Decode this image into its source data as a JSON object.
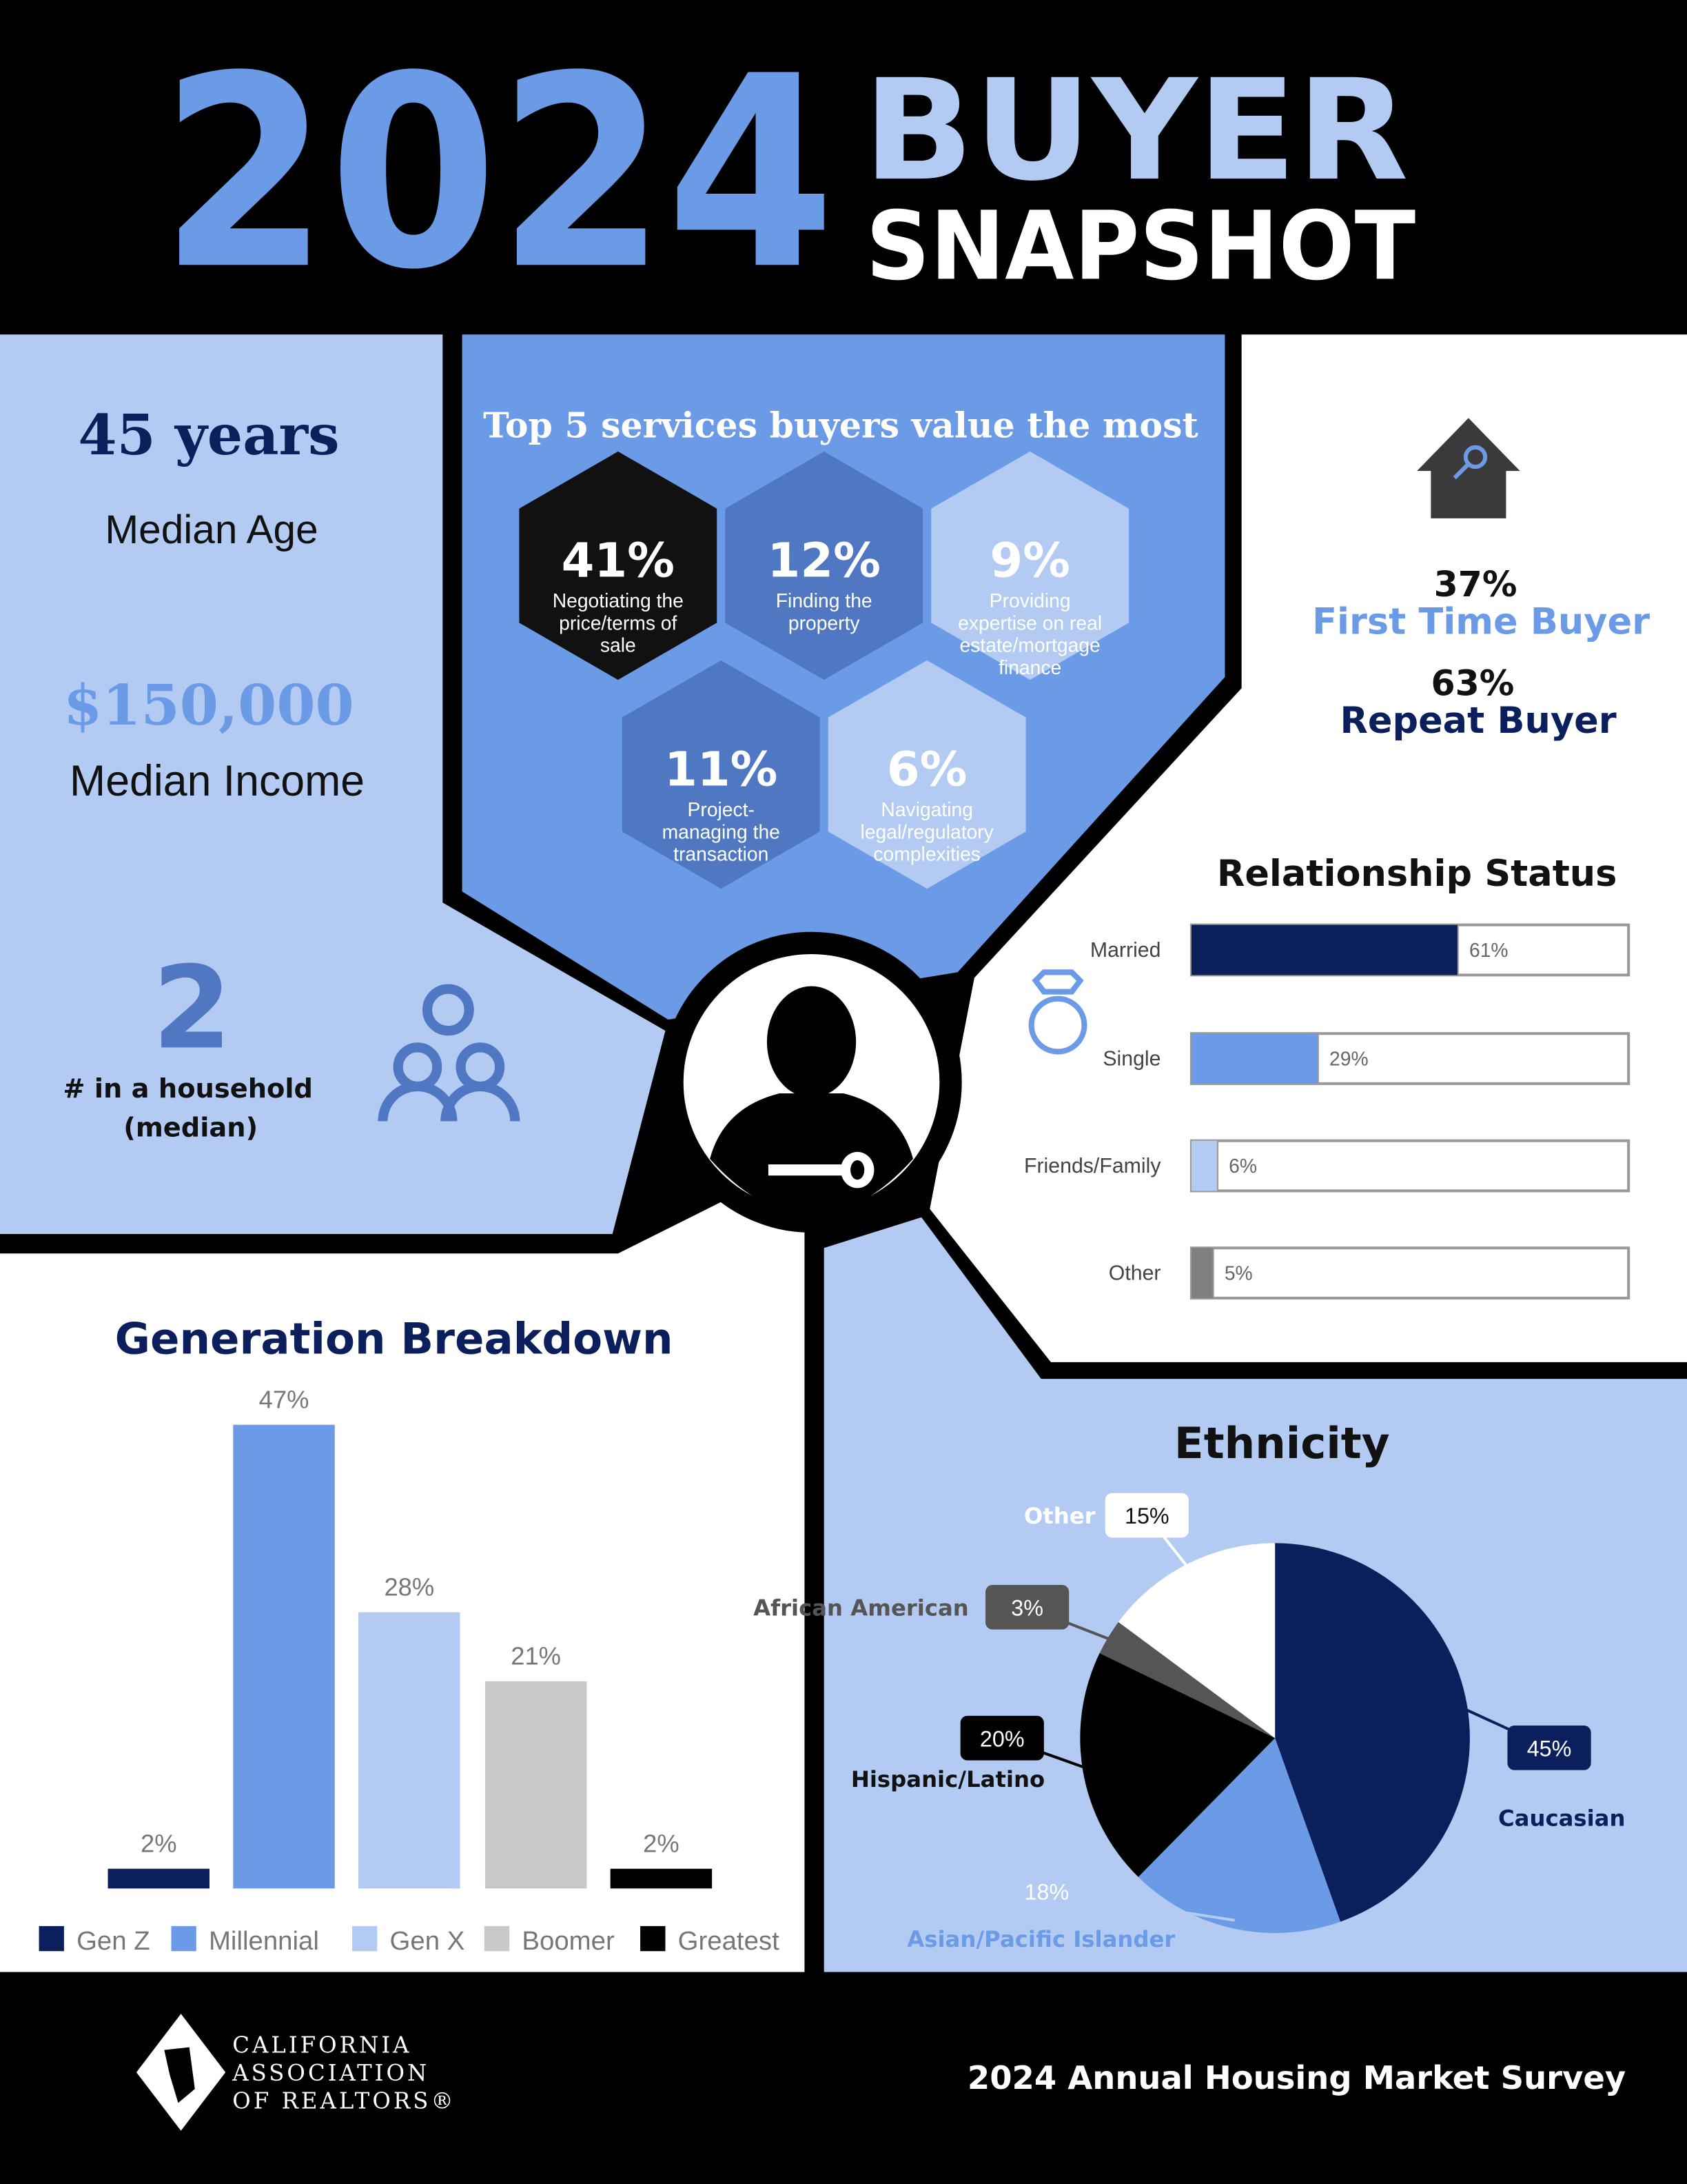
{
  "header": {
    "year": "2024",
    "title_line1": "BUYER",
    "title_line2": "SNAPSHOT"
  },
  "stats": {
    "median_age": {
      "value": "45 years",
      "label": "Median Age"
    },
    "median_income": {
      "value": "$150,000",
      "label": "Median Income"
    },
    "household": {
      "value": "2",
      "label_line1": "# in a household",
      "label_line2": "(median)"
    }
  },
  "services": {
    "title": "Top 5 services buyers value the most",
    "items": [
      {
        "percent": "41%",
        "lines": [
          "Negotiating the",
          "price/terms of",
          "sale"
        ]
      },
      {
        "percent": "12%",
        "lines": [
          "Finding the",
          "property"
        ]
      },
      {
        "percent": "9%",
        "lines": [
          "Providing",
          "expertise on real",
          "estate/mortgage",
          "finance"
        ]
      },
      {
        "percent": "11%",
        "lines": [
          "Project-",
          "managing the",
          "transaction"
        ]
      },
      {
        "percent": "6%",
        "lines": [
          "Navigating",
          "legal/regulatory",
          "complexities"
        ]
      }
    ]
  },
  "buyer_type": [
    {
      "percent": "37%",
      "label": "First Time Buyer"
    },
    {
      "percent": "63%",
      "label": "Repeat Buyer"
    }
  ],
  "chart_data": [
    {
      "type": "hbar",
      "title": "Relationship Status",
      "categories": [
        "Married",
        "Single",
        "Friends/Family",
        "Other"
      ],
      "values": [
        61,
        29,
        6,
        5
      ],
      "value_labels": [
        "61%",
        "29%",
        "6%",
        "5%"
      ],
      "colors": [
        "#0b1f5c",
        "#6b9be6",
        "#b3cbf2",
        "#808080"
      ],
      "xlim": [
        0,
        100
      ]
    },
    {
      "type": "bar",
      "title": "Generation Breakdown",
      "categories": [
        "Gen Z",
        "Millennial",
        "Gen X",
        "Boomer",
        "Greatest"
      ],
      "values": [
        2,
        47,
        28,
        21,
        2
      ],
      "value_labels": [
        "2%",
        "47%",
        "28%",
        "21%",
        "2%"
      ],
      "colors": [
        "#0b1f5c",
        "#6b9be6",
        "#b3cbf2",
        "#c8c8c8",
        "#000000"
      ],
      "legend": "bottom"
    },
    {
      "type": "pie",
      "title": "Ethnicity",
      "categories": [
        "Caucasian",
        "Asian/Pacific Islander",
        "Hispanic/Latino",
        "African American",
        "Other"
      ],
      "values": [
        45,
        18,
        20,
        3,
        15
      ],
      "value_labels": [
        "45%",
        "18%",
        "20%",
        "3%",
        "15%"
      ],
      "colors": [
        "#0b1f5c",
        "#6b9be6",
        "#000000",
        "#555555",
        "#ffffff"
      ]
    }
  ],
  "footer": {
    "org_lines": [
      "CALIFORNIA",
      "ASSOCIATION",
      "OF REALTORS®"
    ],
    "survey": "2024 Annual Housing Market Survey"
  }
}
